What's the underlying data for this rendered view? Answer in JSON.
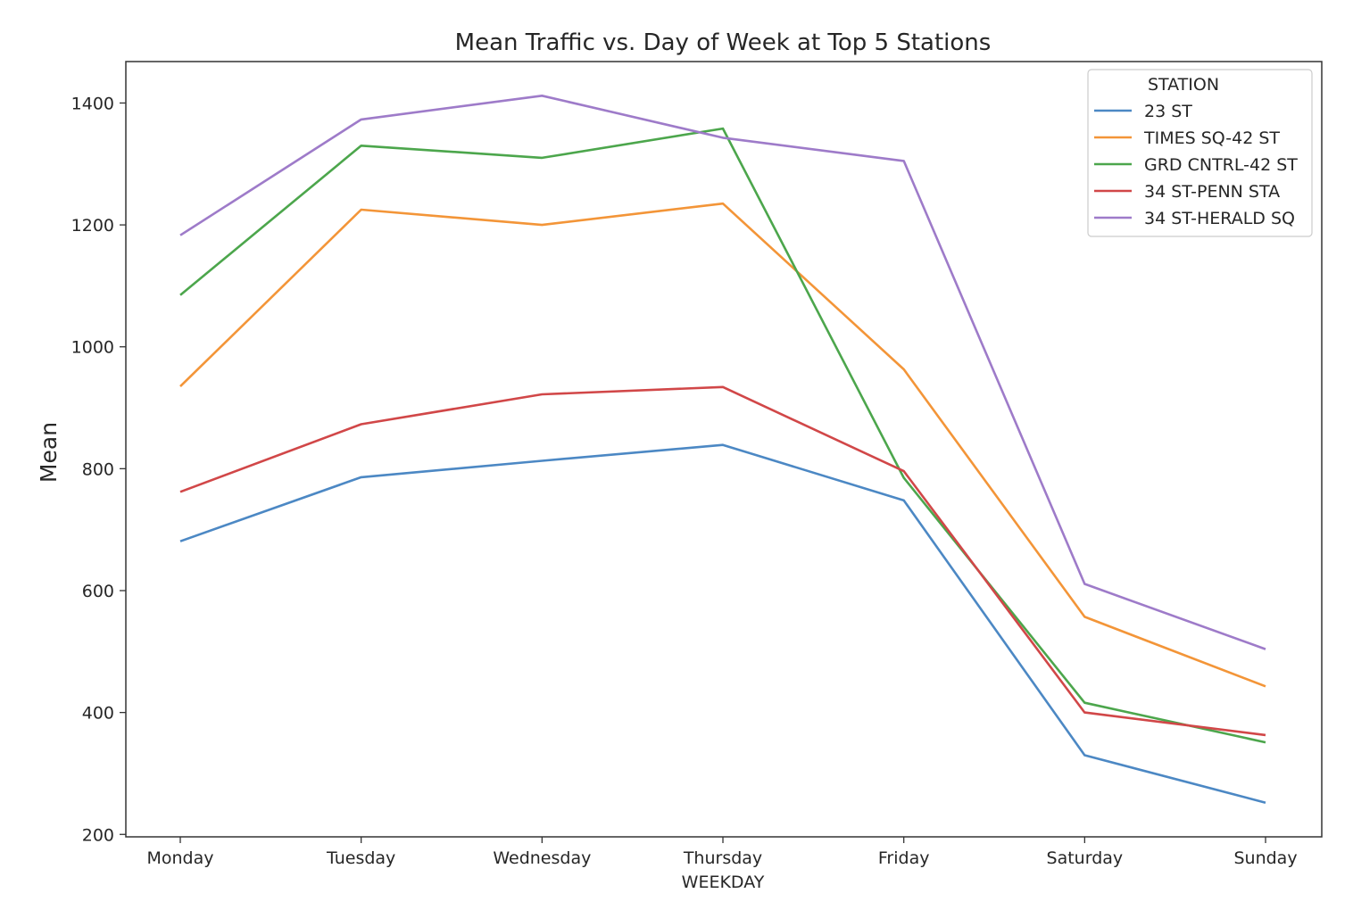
{
  "chart_data": {
    "type": "line",
    "title": "Mean Traffic vs. Day of Week at Top 5 Stations",
    "xlabel": "WEEKDAY",
    "ylabel": "Mean",
    "categories": [
      "Monday",
      "Tuesday",
      "Wednesday",
      "Thursday",
      "Friday",
      "Saturday",
      "Sunday"
    ],
    "ylim": [
      196,
      1468
    ],
    "yticks": [
      200,
      400,
      600,
      800,
      1000,
      1200,
      1400
    ],
    "grid": false,
    "legend": {
      "title": "STATION",
      "placement": "top-right"
    },
    "series": [
      {
        "name": "23 ST",
        "color": "#4c88c4",
        "values": [
          681,
          786,
          813,
          839,
          748,
          330,
          252
        ]
      },
      {
        "name": "TIMES SQ-42 ST",
        "color": "#f39538",
        "values": [
          935,
          1225,
          1200,
          1235,
          963,
          557,
          443
        ]
      },
      {
        "name": "GRD CNTRL-42 ST",
        "color": "#4ca64c",
        "values": [
          1085,
          1330,
          1310,
          1358,
          785,
          416,
          351
        ]
      },
      {
        "name": "34 ST-PENN STA",
        "color": "#d14748",
        "values": [
          762,
          873,
          922,
          934,
          796,
          400,
          363
        ]
      },
      {
        "name": "34 ST-HERALD SQ",
        "color": "#9e7bc9",
        "values": [
          1183,
          1373,
          1412,
          1343,
          1305,
          611,
          504
        ]
      }
    ]
  }
}
